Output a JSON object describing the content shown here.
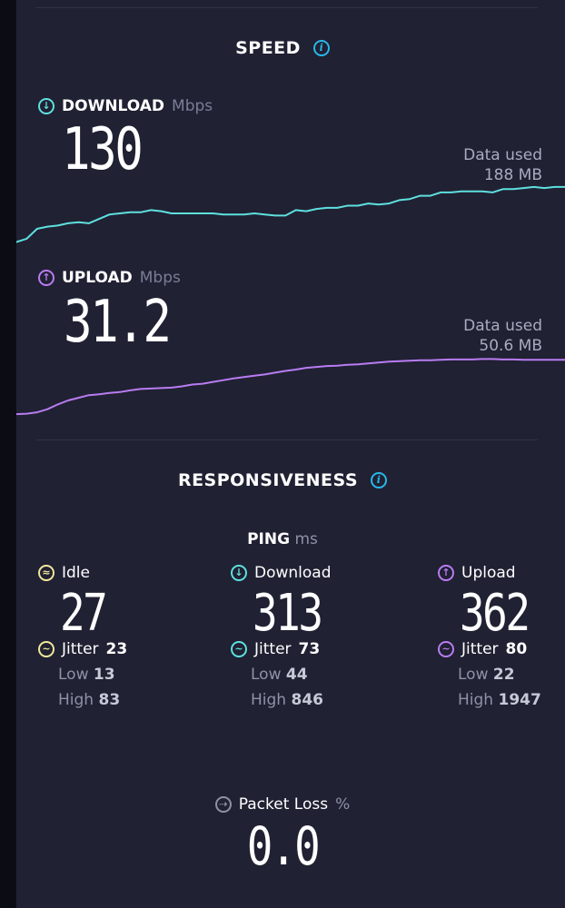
{
  "speed": {
    "title": "SPEED",
    "download": {
      "label": "DOWNLOAD",
      "unit": "Mbps",
      "value": "130",
      "data_used_label": "Data used",
      "data_used_value": "188 MB",
      "color": "#5ee0de",
      "series": [
        92,
        95,
        104,
        106,
        107,
        109,
        110,
        109,
        113,
        117,
        118,
        119,
        119,
        121,
        120,
        118,
        118,
        118,
        118,
        118,
        117,
        117,
        117,
        118,
        117,
        116,
        116,
        121,
        120,
        122,
        123,
        123,
        125,
        125,
        127,
        126,
        127,
        130,
        131,
        134,
        134,
        137,
        137,
        138,
        138,
        138,
        137,
        140,
        140,
        141,
        142,
        141,
        142,
        142
      ]
    },
    "upload": {
      "label": "UPLOAD",
      "unit": "Mbps",
      "value": "31.2",
      "data_used_label": "Data used",
      "data_used_value": "50.6 MB",
      "color": "#b97cf2",
      "series": [
        18.1,
        18.2,
        18.5,
        19.2,
        20.3,
        21.2,
        21.8,
        22.4,
        22.6,
        22.9,
        23.1,
        23.5,
        23.8,
        23.9,
        24.0,
        24.1,
        24.4,
        24.8,
        25.0,
        25.4,
        25.8,
        26.2,
        26.5,
        26.8,
        27.1,
        27.5,
        27.9,
        28.2,
        28.6,
        28.8,
        29.0,
        29.1,
        29.3,
        29.4,
        29.6,
        29.8,
        30.0,
        30.1,
        30.2,
        30.3,
        30.3,
        30.4,
        30.5,
        30.5,
        30.5,
        30.6,
        30.6,
        30.5,
        30.5,
        30.4,
        30.4,
        30.4,
        30.4,
        30.4
      ]
    }
  },
  "responsiveness": {
    "title": "RESPONSIVENESS",
    "ping_label": "PING",
    "ping_unit": "ms",
    "columns": [
      {
        "label": "Idle",
        "value": "27",
        "jitter_label": "Jitter",
        "jitter": "23",
        "low_label": "Low",
        "low": "13",
        "high_label": "High",
        "high": "83",
        "icon": "idle-icon"
      },
      {
        "label": "Download",
        "value": "313",
        "jitter_label": "Jitter",
        "jitter": "73",
        "low_label": "Low",
        "low": "44",
        "high_label": "High",
        "high": "846",
        "icon": "download-arrow-icon"
      },
      {
        "label": "Upload",
        "value": "362",
        "jitter_label": "Jitter",
        "jitter": "80",
        "low_label": "Low",
        "low": "22",
        "high_label": "High",
        "high": "1947",
        "icon": "upload-arrow-icon"
      }
    ],
    "packet_loss": {
      "label": "Packet Loss",
      "unit": "%",
      "value": "0.0"
    }
  },
  "colors": {
    "background": "#202133",
    "accent": "#28b8ea",
    "download": "#5ee0de",
    "upload": "#b97cf2",
    "idle": "#f2e89a"
  }
}
